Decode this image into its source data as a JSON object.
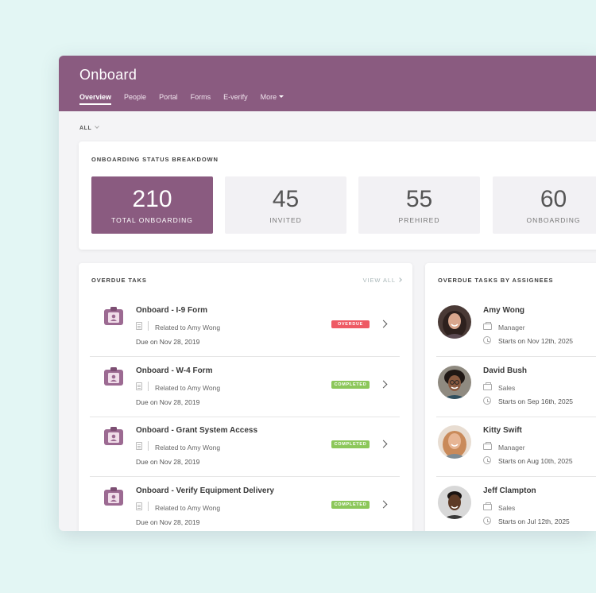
{
  "app": {
    "title": "Onboard"
  },
  "nav": {
    "tabs": [
      {
        "label": "Overview",
        "active": true
      },
      {
        "label": "People"
      },
      {
        "label": "Portal"
      },
      {
        "label": "Forms"
      },
      {
        "label": "E-verify"
      },
      {
        "label": "More"
      }
    ]
  },
  "filter": {
    "label": "ALL"
  },
  "status": {
    "title": "ONBOARDING STATUS BREAKDOWN",
    "stats": [
      {
        "value": "210",
        "label": "TOTAL ONBOARDING"
      },
      {
        "value": "45",
        "label": "INVITED"
      },
      {
        "value": "55",
        "label": "PREHIRED"
      },
      {
        "value": "60",
        "label": "ONBOARDING"
      }
    ]
  },
  "tasks": {
    "title": "OVERDUE TAKS",
    "view_all": "VIEW ALL",
    "items": [
      {
        "name": "Onboard - I-9 Form",
        "related": "Related to Amy Wong",
        "due": "Due on Nov 28, 2019",
        "status": "OVERDUE"
      },
      {
        "name": "Onboard - W-4 Form",
        "related": "Related to Amy Wong",
        "due": "Due on Nov 28, 2019",
        "status": "COMPLETED"
      },
      {
        "name": "Onboard - Grant System Access",
        "related": "Related to Amy Wong",
        "due": "Due on Nov 28, 2019",
        "status": "COMPLETED"
      },
      {
        "name": "Onboard - Verify Equipment Delivery",
        "related": "Related to Amy Wong",
        "due": "Due on Nov 28, 2019",
        "status": "COMPLETED"
      }
    ]
  },
  "assignees": {
    "title": "OVERDUE TASKS BY ASSIGNEES",
    "people": [
      {
        "name": "Amy Wong",
        "role": "Manager",
        "start": "Starts on Nov 12th, 2025"
      },
      {
        "name": "David Bush",
        "role": "Sales",
        "start": "Starts on Sep 16th, 2025"
      },
      {
        "name": "Kitty Swift",
        "role": "Manager",
        "start": "Starts on Aug 10th, 2025"
      },
      {
        "name": "Jeff Clampton",
        "role": "Sales",
        "start": "Starts on  Jul 12th, 2025"
      }
    ]
  },
  "colors": {
    "brand": "#8a5b80",
    "overdue": "#ee5a64",
    "completed": "#8cc75a",
    "background": "#e3f6f4"
  },
  "icons": {
    "task": "clipboard-user-icon",
    "doc": "document-icon",
    "role": "briefcase-icon",
    "start": "clock-icon",
    "row": "chevron-right-icon"
  }
}
